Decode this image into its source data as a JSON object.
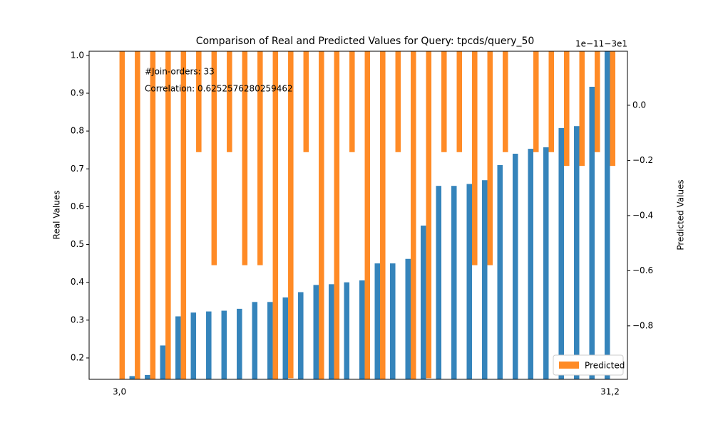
{
  "chart_data": {
    "type": "bar",
    "title": "Comparison of Real and Predicted Values for Query: tpcds/query_50",
    "ylabel": "Real Values",
    "y2label": "Predicted Values",
    "y2_offset_text": "1e−11−3e1",
    "annotations": [
      "#Join-orders: 33",
      "Correlation: 0.6252576280259462"
    ],
    "categories": [
      "3,0",
      null,
      null,
      null,
      null,
      null,
      null,
      null,
      null,
      null,
      null,
      null,
      null,
      null,
      null,
      null,
      null,
      null,
      null,
      null,
      null,
      null,
      null,
      null,
      null,
      null,
      null,
      null,
      null,
      null,
      null,
      null,
      "31,2"
    ],
    "xlim": [
      -1.98,
      33.14
    ],
    "ylim": [
      0.1435,
      1.011
    ],
    "yticks": [
      0.2,
      0.3,
      0.4,
      0.5,
      0.6,
      0.7,
      0.8,
      0.9,
      {
        "value": 1,
        "label": "1.0"
      }
    ],
    "y2lim": [
      -0.994,
      0.196
    ],
    "y2ticks": [
      {
        "value": -0.8,
        "label": "−0.8"
      },
      {
        "value": -0.6,
        "label": "−0.6"
      },
      {
        "value": -0.4,
        "label": "−0.4"
      },
      {
        "value": -0.2,
        "label": "−0.2"
      },
      {
        "value": 0,
        "label": "0.0"
      }
    ],
    "legend": "lower right",
    "series": [
      {
        "color": "#3584bb",
        "values": [
          0.1,
          0.152,
          0.155,
          0.233,
          0.31,
          0.32,
          0.323,
          0.325,
          0.33,
          0.348,
          0.348,
          0.36,
          0.374,
          0.393,
          0.395,
          0.4,
          0.405,
          0.45,
          0.45,
          0.462,
          0.55,
          0.655,
          0.655,
          0.66,
          0.67,
          0.71,
          0.74,
          0.753,
          0.757,
          0.808,
          0.813,
          0.917,
          1.02
        ]
      },
      {
        "name": "Predicted",
        "color": "#ff8b26",
        "axis": "y2",
        "values": [
          -1.0,
          -1.0,
          -1.0,
          -1.0,
          -1.0,
          -0.17,
          -0.58,
          -0.17,
          -0.58,
          -0.58,
          -1.0,
          -0.99,
          -0.17,
          -1.0,
          -1.0,
          -0.17,
          -1.0,
          -1.0,
          -0.17,
          -1.0,
          -0.99,
          -0.17,
          -0.17,
          -0.58,
          -0.58,
          -0.17,
          0.2,
          -0.17,
          -0.17,
          -0.22,
          -0.22,
          -0.17,
          -0.22
        ]
      }
    ]
  }
}
